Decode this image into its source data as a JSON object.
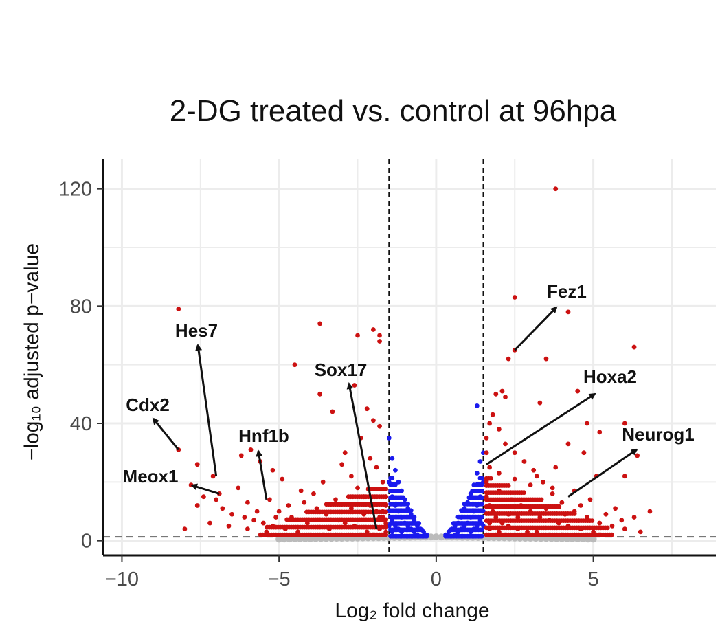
{
  "chart_data": {
    "type": "scatter",
    "title": "2-DG treated vs. control at 96hpa",
    "xlabel": "Log₂ fold change",
    "ylabel": "−log₁₀ adjusted p−value",
    "xlim": [
      -10.6,
      8.9
    ],
    "ylim": [
      -5,
      130
    ],
    "x_ticks": [
      -10,
      -5,
      0,
      5
    ],
    "x_tick_labels": [
      "−10",
      "−5",
      "0",
      "5"
    ],
    "y_ticks": [
      0,
      40,
      80,
      120
    ],
    "y_tick_labels": [
      "0",
      "40",
      "80",
      "120"
    ],
    "grid": true,
    "fold_change_thresholds": [
      -1.5,
      1.5
    ],
    "pvalue_threshold": 1.3,
    "colors": {
      "significant": "#cc1111",
      "not_significant_large_fc": "#1a1aee",
      "not_significant": "#bbbbbb",
      "threshold_line": "#111111",
      "pvalue_line": "#666666"
    },
    "labeled_genes": [
      {
        "name": "Fez1",
        "x": 2.5,
        "y": 65
      },
      {
        "name": "Hoxa2",
        "x": 1.6,
        "y": 26
      },
      {
        "name": "Neurog1",
        "x": 4.2,
        "y": 15
      },
      {
        "name": "Sox17",
        "x": -1.9,
        "y": 4
      },
      {
        "name": "Hnf1b",
        "x": -5.4,
        "y": 14
      },
      {
        "name": "Hes7",
        "x": -7.0,
        "y": 22
      },
      {
        "name": "Cdx2",
        "x": -8.2,
        "y": 31
      },
      {
        "name": "Meox1",
        "x": -6.9,
        "y": 16
      }
    ],
    "red_points": [
      [
        -8.2,
        79
      ],
      [
        -3.7,
        74
      ],
      [
        -2.5,
        70
      ],
      [
        -2.0,
        72
      ],
      [
        -1.8,
        70
      ],
      [
        -1.8,
        68
      ],
      [
        -4.5,
        60
      ],
      [
        -3.7,
        50
      ],
      [
        -2.6,
        53
      ],
      [
        -2.2,
        45
      ],
      [
        -3.3,
        44
      ],
      [
        -2.0,
        41
      ],
      [
        -1.8,
        39
      ],
      [
        -8.2,
        31
      ],
      [
        -7.6,
        26
      ],
      [
        -6.2,
        29
      ],
      [
        -5.9,
        31
      ],
      [
        -5.6,
        27
      ],
      [
        -5.2,
        24
      ],
      [
        -4.9,
        21
      ],
      [
        -7.1,
        22
      ],
      [
        -7.8,
        19
      ],
      [
        -7.4,
        15
      ],
      [
        -7.6,
        12
      ],
      [
        -7.0,
        14
      ],
      [
        -6.8,
        11
      ],
      [
        -6.5,
        9
      ],
      [
        -6.1,
        8
      ],
      [
        -5.8,
        7
      ],
      [
        -5.5,
        6
      ],
      [
        -5.2,
        5
      ],
      [
        -4.8,
        4
      ],
      [
        -4.4,
        3
      ],
      [
        -4.0,
        2
      ],
      [
        -3.6,
        2
      ],
      [
        -3.2,
        2
      ],
      [
        -2.8,
        2
      ],
      [
        -2.4,
        2
      ],
      [
        -2.0,
        2
      ],
      [
        -1.7,
        2
      ],
      [
        -8.0,
        4
      ],
      [
        -7.2,
        6
      ],
      [
        -6.6,
        5
      ],
      [
        -6.0,
        4
      ],
      [
        -5.4,
        3
      ],
      [
        -3.0,
        26
      ],
      [
        -2.7,
        22
      ],
      [
        -2.5,
        18
      ],
      [
        -2.3,
        15
      ],
      [
        -2.1,
        12
      ],
      [
        -1.9,
        10
      ],
      [
        -1.7,
        8
      ],
      [
        -1.6,
        6
      ],
      [
        -1.6,
        5
      ],
      [
        -4.2,
        13
      ],
      [
        -3.8,
        11
      ],
      [
        -3.5,
        9
      ],
      [
        -3.1,
        7
      ],
      [
        -2.9,
        6
      ],
      [
        -2.6,
        5
      ],
      [
        -4.6,
        8
      ],
      [
        -4.1,
        6
      ],
      [
        -3.4,
        4
      ],
      [
        -2.2,
        3
      ],
      [
        -1.8,
        4
      ],
      [
        -1.6,
        3
      ],
      [
        -5.0,
        10
      ],
      [
        -4.3,
        17
      ],
      [
        -3.6,
        20
      ],
      [
        -2.9,
        30
      ],
      [
        -2.4,
        35
      ],
      [
        -2.1,
        28
      ],
      [
        -1.9,
        25
      ],
      [
        -1.7,
        20
      ],
      [
        -1.6,
        15
      ],
      [
        -1.6,
        12
      ],
      [
        -1.7,
        10
      ],
      [
        -1.8,
        8
      ],
      [
        -2.0,
        7
      ],
      [
        -2.3,
        9
      ],
      [
        -2.7,
        11
      ],
      [
        -3.2,
        14
      ],
      [
        -3.9,
        16
      ],
      [
        -4.7,
        12
      ],
      [
        -5.3,
        14
      ],
      [
        -6.3,
        18
      ],
      [
        -6.9,
        16
      ],
      [
        -6.0,
        13
      ],
      [
        -5.7,
        10
      ],
      [
        -5.1,
        8
      ],
      [
        3.8,
        120
      ],
      [
        2.5,
        83
      ],
      [
        4.2,
        78
      ],
      [
        2.5,
        65
      ],
      [
        2.3,
        62
      ],
      [
        3.5,
        62
      ],
      [
        6.3,
        66
      ],
      [
        4.5,
        51
      ],
      [
        2.1,
        51
      ],
      [
        1.9,
        50
      ],
      [
        2.2,
        49
      ],
      [
        3.3,
        47
      ],
      [
        4.8,
        40
      ],
      [
        5.2,
        37
      ],
      [
        6.0,
        40
      ],
      [
        6.4,
        29
      ],
      [
        4.2,
        33
      ],
      [
        4.7,
        30
      ],
      [
        3.8,
        25
      ],
      [
        3.2,
        22
      ],
      [
        5.1,
        22
      ],
      [
        6.0,
        22
      ],
      [
        5.7,
        11
      ],
      [
        6.3,
        8
      ],
      [
        6.8,
        10
      ],
      [
        4.9,
        14
      ],
      [
        4.4,
        17
      ],
      [
        3.7,
        18
      ],
      [
        3.0,
        19
      ],
      [
        2.5,
        21
      ],
      [
        2.0,
        23
      ],
      [
        1.7,
        25
      ],
      [
        1.6,
        30
      ],
      [
        1.6,
        35
      ],
      [
        1.7,
        40
      ],
      [
        1.8,
        43
      ],
      [
        2.0,
        38
      ],
      [
        2.2,
        33
      ],
      [
        2.5,
        30
      ],
      [
        2.8,
        27
      ],
      [
        3.1,
        24
      ],
      [
        3.4,
        20
      ],
      [
        3.7,
        16
      ],
      [
        4.0,
        13
      ],
      [
        4.4,
        10
      ],
      [
        4.8,
        8
      ],
      [
        5.2,
        6
      ],
      [
        5.6,
        5
      ],
      [
        6.0,
        4
      ],
      [
        6.5,
        3
      ],
      [
        1.6,
        20
      ],
      [
        1.6,
        15
      ],
      [
        1.7,
        12
      ],
      [
        1.8,
        10
      ],
      [
        1.9,
        8
      ],
      [
        2.1,
        6
      ],
      [
        2.3,
        5
      ],
      [
        2.6,
        4
      ],
      [
        2.9,
        3
      ],
      [
        3.2,
        3
      ],
      [
        3.6,
        2
      ],
      [
        4.0,
        2
      ],
      [
        4.4,
        2
      ],
      [
        4.8,
        2
      ],
      [
        5.2,
        2
      ],
      [
        1.6,
        2
      ],
      [
        1.9,
        2
      ],
      [
        2.2,
        2
      ],
      [
        2.5,
        2
      ],
      [
        2.8,
        2
      ],
      [
        2.0,
        17
      ],
      [
        2.4,
        14
      ],
      [
        2.7,
        12
      ],
      [
        3.0,
        10
      ],
      [
        3.3,
        8
      ],
      [
        3.6,
        7
      ],
      [
        3.9,
        6
      ],
      [
        4.2,
        5
      ],
      [
        4.6,
        4
      ],
      [
        5.0,
        3
      ],
      [
        1.7,
        6
      ],
      [
        1.7,
        4
      ],
      [
        2.0,
        3
      ],
      [
        2.3,
        9
      ],
      [
        2.6,
        8
      ],
      [
        3.5,
        11
      ],
      [
        4.1,
        9
      ],
      [
        4.6,
        12
      ],
      [
        5.4,
        9
      ],
      [
        5.9,
        7
      ]
    ],
    "blue_points": [
      [
        -1.5,
        35
      ],
      [
        -1.4,
        28
      ],
      [
        -1.3,
        24
      ],
      [
        -1.2,
        20
      ],
      [
        -1.1,
        17
      ],
      [
        -1.0,
        14
      ],
      [
        -0.9,
        11
      ],
      [
        -0.8,
        9
      ],
      [
        -0.7,
        7
      ],
      [
        -0.6,
        5
      ],
      [
        -0.5,
        4
      ],
      [
        -0.4,
        3
      ],
      [
        -0.3,
        2
      ],
      [
        -1.5,
        20
      ],
      [
        -1.4,
        15
      ],
      [
        -1.3,
        12
      ],
      [
        -1.2,
        10
      ],
      [
        -1.1,
        8
      ],
      [
        -1.0,
        6
      ],
      [
        -0.9,
        5
      ],
      [
        -0.8,
        4
      ],
      [
        -0.7,
        3
      ],
      [
        -0.6,
        2
      ],
      [
        -1.5,
        10
      ],
      [
        -1.4,
        7
      ],
      [
        -1.3,
        5
      ],
      [
        -1.2,
        4
      ],
      [
        -1.1,
        3
      ],
      [
        -1.5,
        5
      ],
      [
        -1.4,
        3
      ],
      [
        1.5,
        30
      ],
      [
        1.4,
        27
      ],
      [
        1.3,
        23
      ],
      [
        1.2,
        19
      ],
      [
        1.1,
        16
      ],
      [
        1.0,
        13
      ],
      [
        0.9,
        11
      ],
      [
        0.8,
        8
      ],
      [
        0.7,
        6
      ],
      [
        0.6,
        5
      ],
      [
        0.5,
        4
      ],
      [
        0.4,
        3
      ],
      [
        0.3,
        2
      ],
      [
        1.3,
        46
      ],
      [
        1.5,
        20
      ],
      [
        1.4,
        15
      ],
      [
        1.3,
        12
      ],
      [
        1.2,
        10
      ],
      [
        1.1,
        8
      ],
      [
        1.0,
        6
      ],
      [
        0.9,
        5
      ],
      [
        0.8,
        4
      ],
      [
        0.7,
        3
      ],
      [
        0.6,
        2
      ],
      [
        1.5,
        10
      ],
      [
        1.4,
        7
      ],
      [
        1.3,
        5
      ],
      [
        1.2,
        4
      ],
      [
        1.1,
        3
      ],
      [
        1.5,
        5
      ]
    ]
  }
}
